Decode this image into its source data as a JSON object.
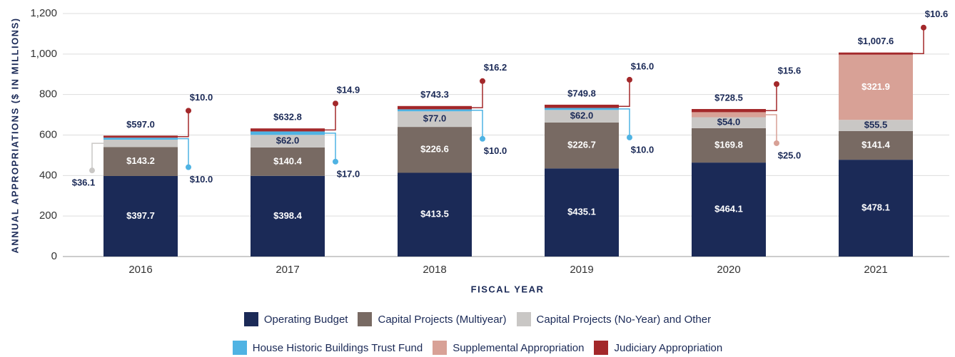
{
  "chart_data": {
    "type": "bar",
    "stacked": true,
    "x_label": "FISCAL YEAR",
    "y_label": "ANNUAL APPROPRIATIONS ($ IN MILLIONS)",
    "categories": [
      "2016",
      "2017",
      "2018",
      "2019",
      "2020",
      "2021"
    ],
    "series": [
      {
        "name": "Operating Budget",
        "color": "#1b2a57",
        "values": [
          397.7,
          398.4,
          413.5,
          435.1,
          464.1,
          478.1
        ],
        "value_labels": [
          "$397.7",
          "$398.4",
          "$413.5",
          "$435.1",
          "$464.1",
          "$478.1"
        ]
      },
      {
        "name": "Capital Projects (Multiyear)",
        "color": "#786a63",
        "values": [
          143.2,
          140.4,
          226.6,
          226.7,
          169.8,
          141.4
        ],
        "value_labels": [
          "$143.2",
          "$140.4",
          "$226.6",
          "$226.7",
          "$169.8",
          "$141.4"
        ]
      },
      {
        "name": "Capital Projects (No-Year) and Other",
        "color": "#c9c7c5",
        "values": [
          36.1,
          62.0,
          77.0,
          62.0,
          54.0,
          55.5
        ],
        "value_labels": [
          "$36.1",
          "$62.0",
          "$77.0",
          "$62.0",
          "$54.0",
          "$55.5"
        ]
      },
      {
        "name": "House Historic Buildings Trust Fund",
        "color": "#4fb3e3",
        "values": [
          10.0,
          17.0,
          10.0,
          10.0,
          null,
          null
        ],
        "value_labels": [
          "$10.0",
          "$17.0",
          "$10.0",
          "$10.0",
          null,
          null
        ]
      },
      {
        "name": "Supplemental Appropriation",
        "color": "#d8a196",
        "values": [
          null,
          null,
          null,
          null,
          25.0,
          321.9
        ],
        "value_labels": [
          null,
          null,
          null,
          null,
          "$25.0",
          "$321.9"
        ]
      },
      {
        "name": "Judiciary Appropriation",
        "color": "#a3282a",
        "values": [
          10.0,
          14.9,
          16.2,
          16.0,
          15.6,
          10.6
        ],
        "value_labels": [
          "$10.0",
          "$14.9",
          "$16.2",
          "$16.0",
          "$15.6",
          "$10.6"
        ]
      }
    ],
    "totals": {
      "values": [
        597.0,
        632.8,
        743.3,
        749.8,
        728.5,
        1007.6
      ],
      "value_labels": [
        "$597.0",
        "$632.8",
        "$743.3",
        "$749.8",
        "$728.5",
        "$1,007.6"
      ]
    },
    "ylim": [
      0,
      1200
    ],
    "yticks": [
      0,
      200,
      400,
      600,
      800,
      {
        "value": 1000,
        "label": "1,000"
      },
      {
        "value": 1200,
        "label": "1,200"
      }
    ],
    "grid": true
  }
}
